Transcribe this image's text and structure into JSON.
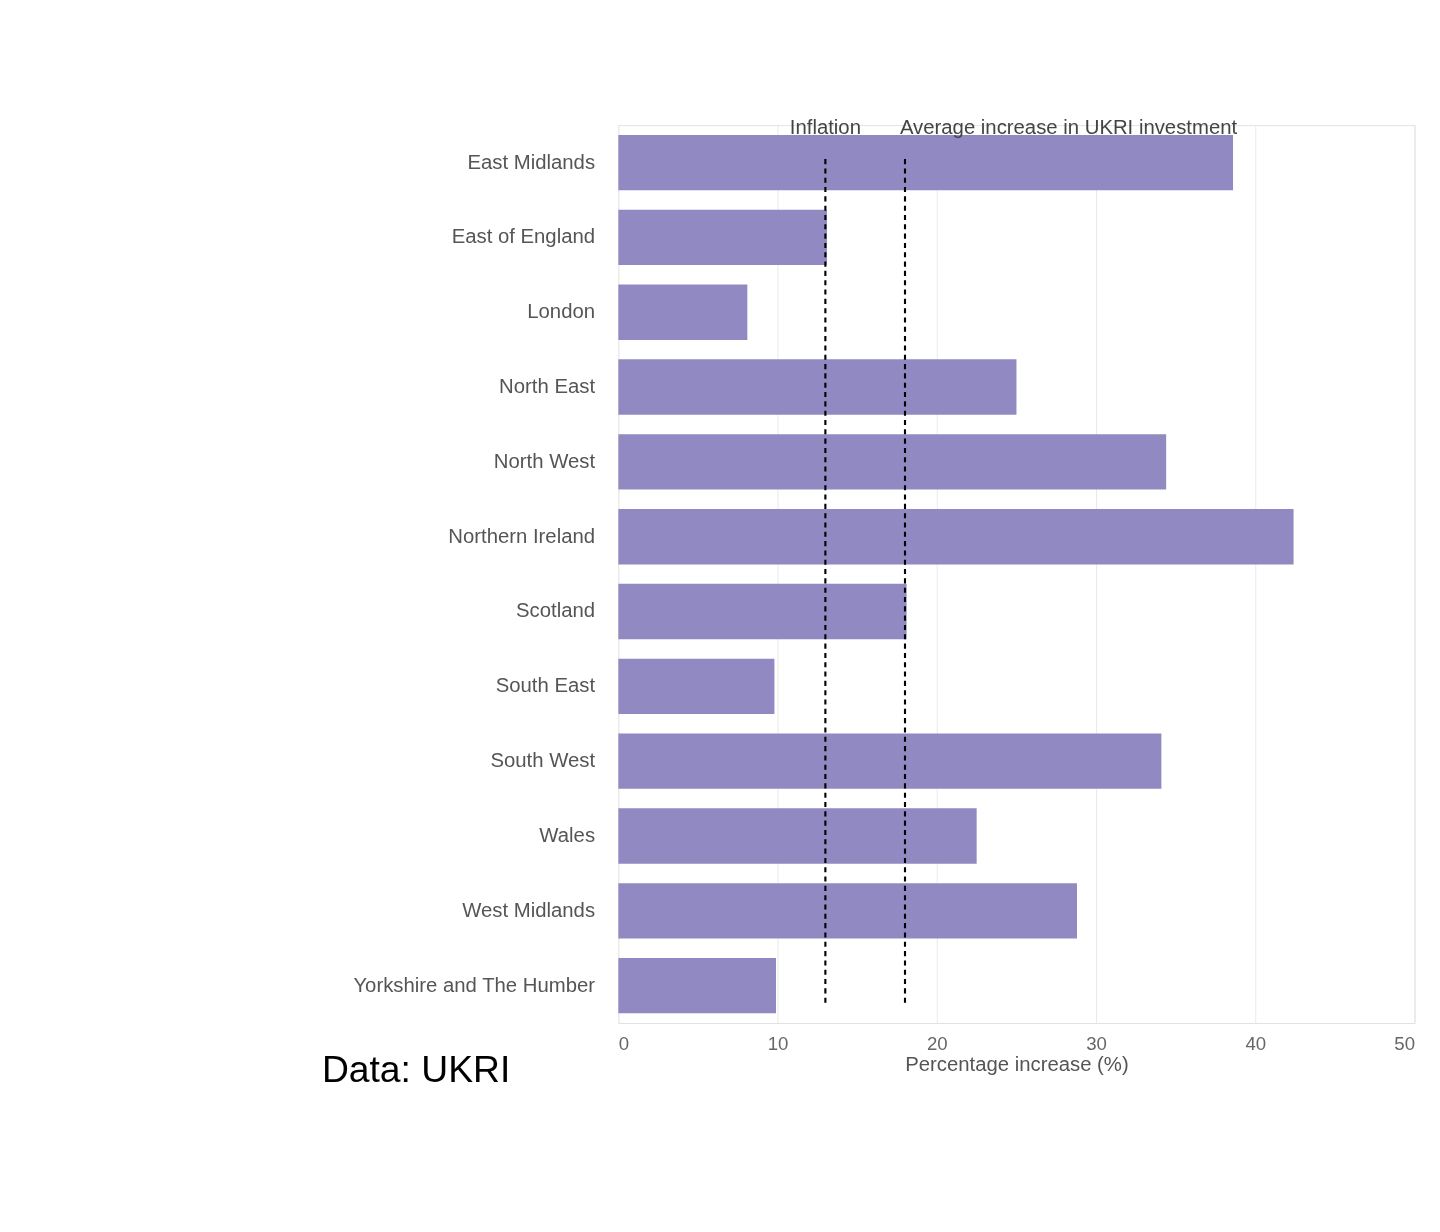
{
  "chart_data": {
    "type": "bar",
    "orientation": "horizontal",
    "xlabel": "Percentage increase (%)",
    "categories": [
      "East Midlands",
      "East of England",
      "London",
      "North East",
      "North West",
      "Northern Ireland",
      "Scotland",
      "South East",
      "South West",
      "Wales",
      "West Midlands",
      "Yorkshire and The Humber"
    ],
    "values": [
      38.6,
      13.1,
      8.1,
      25.0,
      34.4,
      42.4,
      18.1,
      9.8,
      34.1,
      22.5,
      28.8,
      9.9
    ],
    "color": "#9189c2",
    "xlim": [
      0,
      50
    ],
    "xticks": [
      0,
      10,
      20,
      30,
      40,
      50
    ],
    "grid": "x",
    "ref_lines": [
      {
        "axis": "x",
        "value": 13.0,
        "label": "Inflation",
        "color": "#000000",
        "line_style": "dashed"
      },
      {
        "axis": "x",
        "value": 18.0,
        "label": "Average increase in UKRI investment",
        "color": "#000000",
        "line_style": "dashed"
      }
    ],
    "annotations": [
      "Data: UKRI"
    ]
  }
}
